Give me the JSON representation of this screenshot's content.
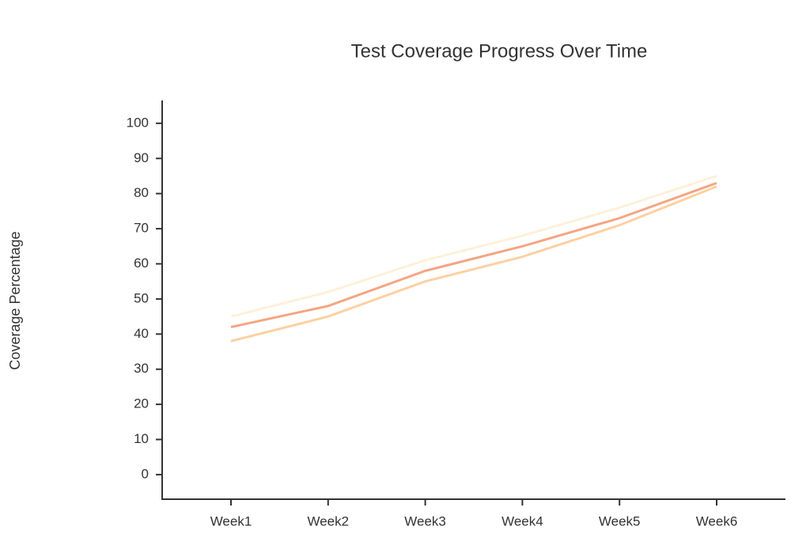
{
  "chart_data": {
    "type": "line",
    "title": "Test Coverage Progress Over Time",
    "y_label": "Coverage Percentage",
    "categories": [
      "Week1",
      "Week2",
      "Week3",
      "Week4",
      "Week5",
      "Week6"
    ],
    "series": [
      {
        "color": "#fff0d9",
        "values": [
          45,
          52,
          61,
          68,
          76,
          85
        ]
      },
      {
        "color": "#fdd0a2",
        "values": [
          38,
          45,
          55,
          62,
          71,
          82
        ]
      },
      {
        "color": "#f4a582",
        "values": [
          42,
          48,
          58,
          65,
          73,
          83
        ]
      }
    ],
    "ylim": [
      -7,
      106.5
    ],
    "yticks": [
      0,
      10,
      20,
      30,
      40,
      50,
      60,
      70,
      80,
      90,
      100
    ]
  }
}
